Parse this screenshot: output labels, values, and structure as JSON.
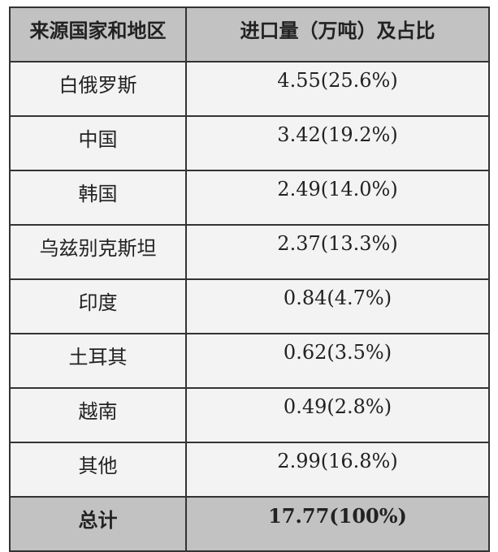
{
  "table": {
    "headers": [
      "来源国家和地区",
      "进口量（万吨）及占比"
    ],
    "rows": [
      [
        "白俄罗斯",
        "4.55(25.6%)"
      ],
      [
        "中国",
        "3.42(19.2%)"
      ],
      [
        "韩国",
        "2.49(14.0%)"
      ],
      [
        "乌兹别克斯坦",
        "2.37(13.3%)"
      ],
      [
        "印度",
        "0.84(4.7%)"
      ],
      [
        "土耳其",
        "0.62(3.5%)"
      ],
      [
        "越南",
        "0.49(2.8%)"
      ],
      [
        "其他",
        "2.99(16.8%)"
      ]
    ],
    "total": [
      "总计",
      "17.77(100%)"
    ]
  },
  "colors": {
    "header_bg": "#c2c2c2",
    "row_bg": "#f3f3f3",
    "border": "#333333"
  }
}
